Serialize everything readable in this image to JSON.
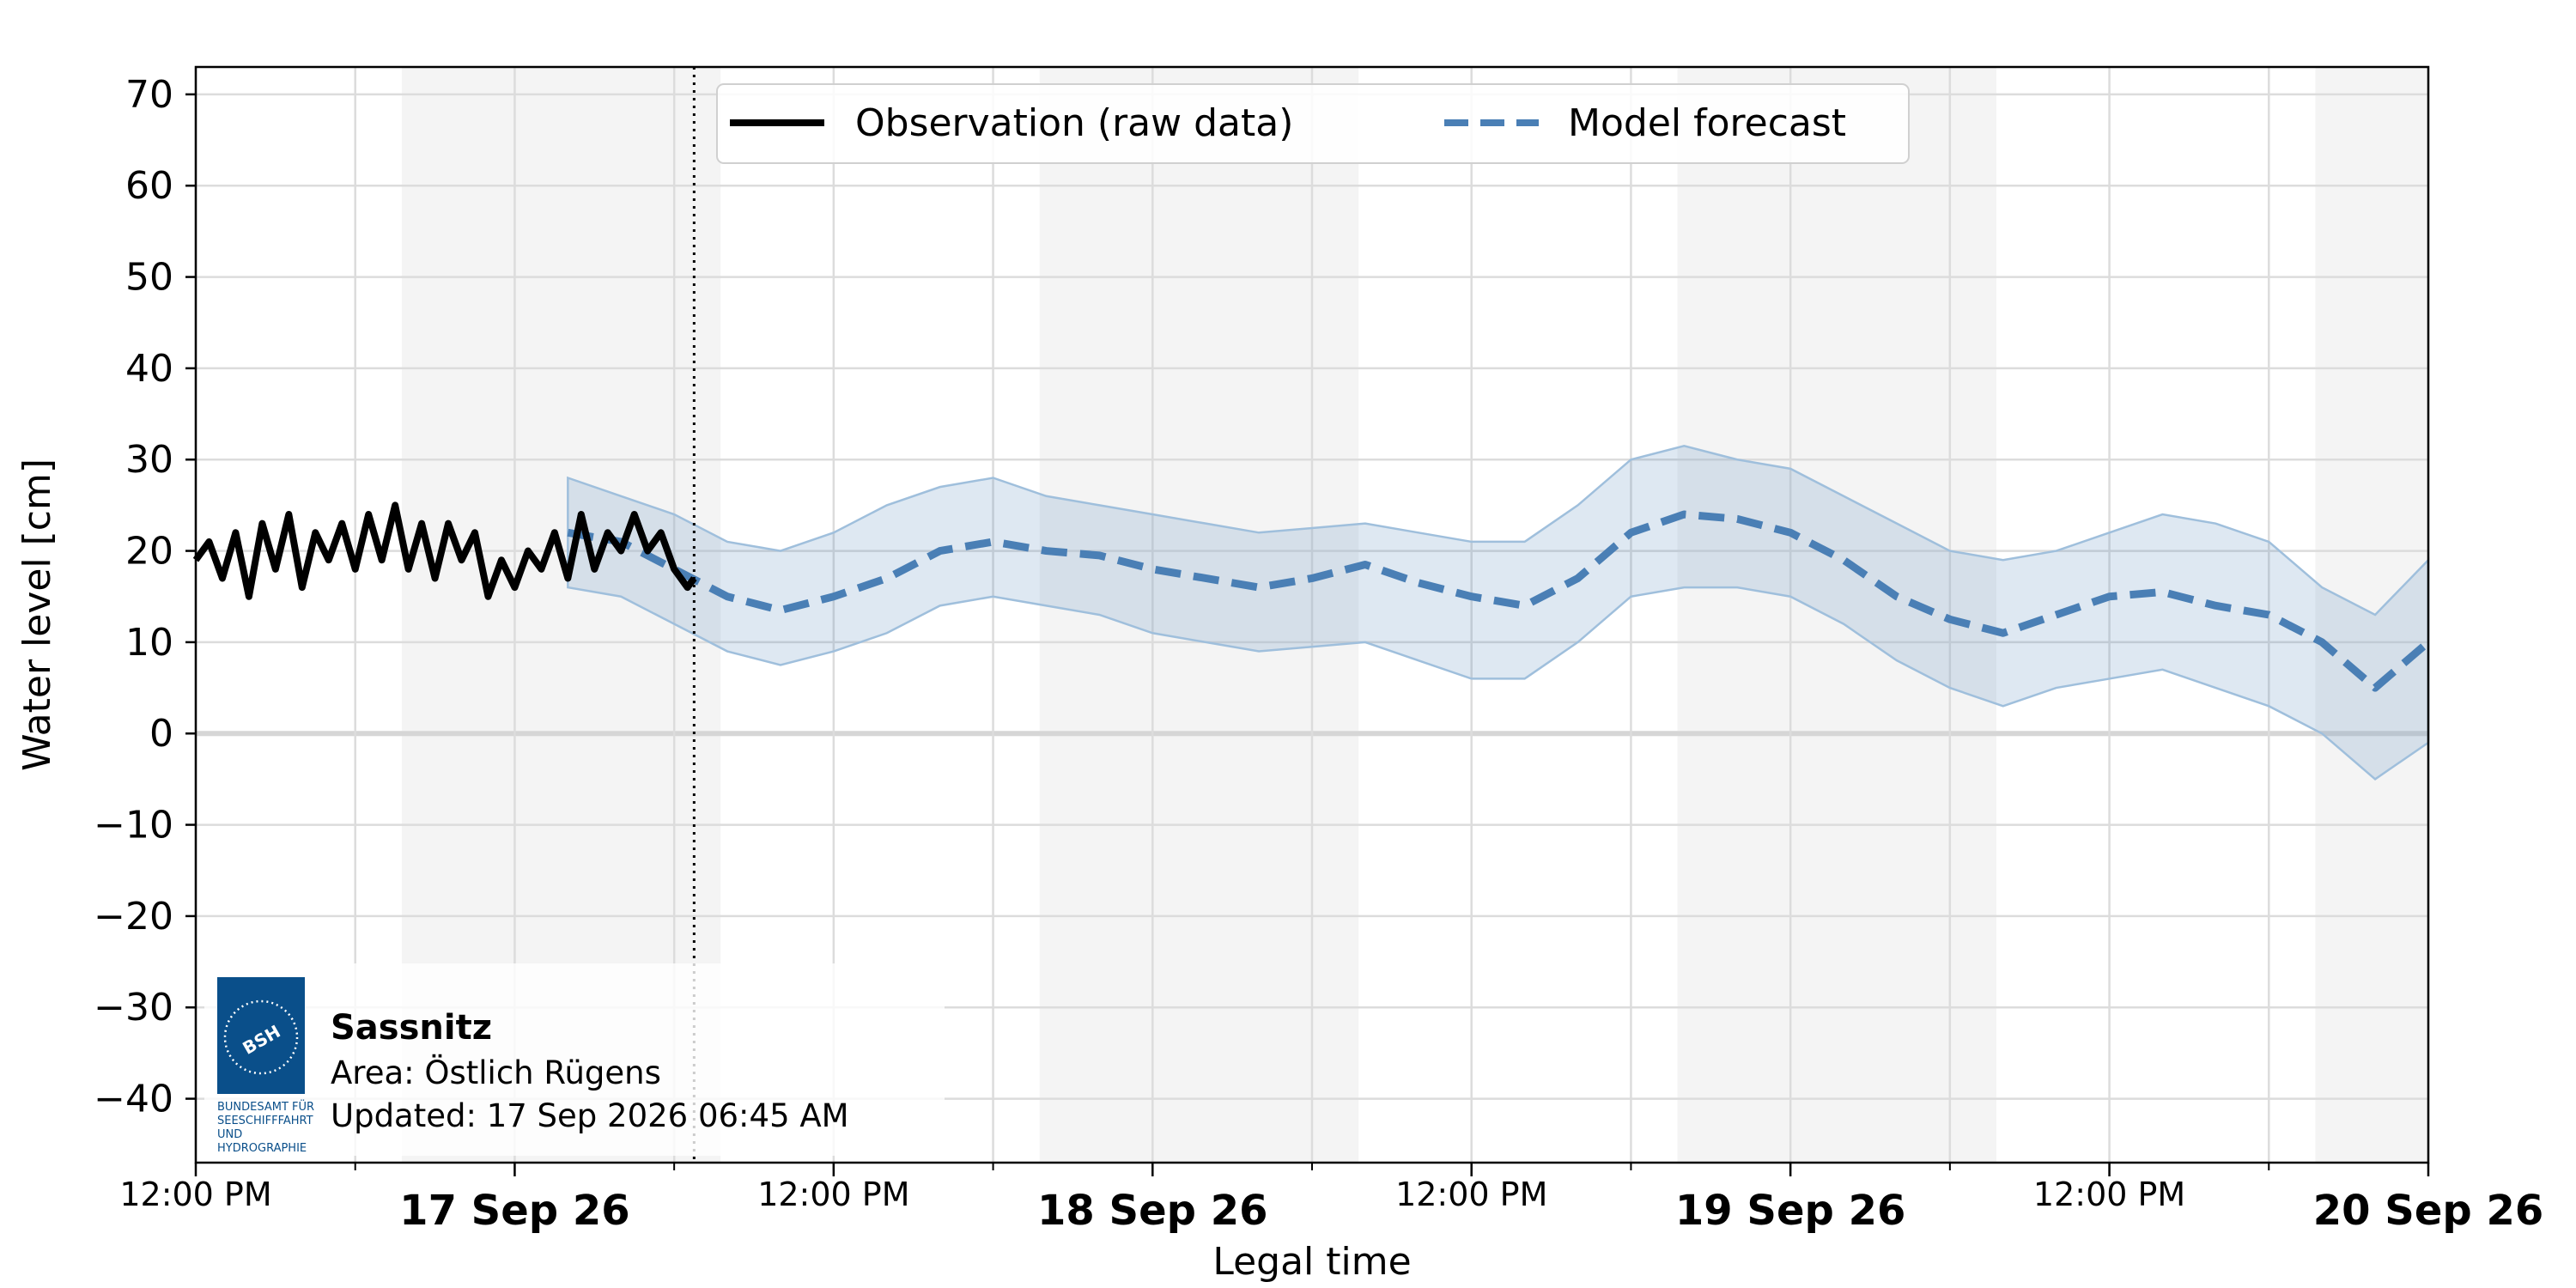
{
  "chart_data": {
    "type": "line",
    "xlabel": "Legal time",
    "ylabel": "Water level [cm]",
    "ylim": [
      -47,
      73
    ],
    "yticks": [
      70,
      60,
      50,
      40,
      30,
      20,
      10,
      0,
      -10,
      -20,
      -30,
      -40
    ],
    "ytick_labels": [
      "70",
      "60",
      "50",
      "40",
      "30",
      "20",
      "10",
      "0",
      "−10",
      "−20",
      "−30",
      "−40"
    ],
    "xlim": [
      "2026-09-16T12:00",
      "2026-09-20T00:00"
    ],
    "xticks": [
      {
        "t": "2026-09-16T12:00",
        "label": "12:00 PM",
        "major": false
      },
      {
        "t": "2026-09-17T00:00",
        "label": "17 Sep 26",
        "major": true
      },
      {
        "t": "2026-09-17T12:00",
        "label": "12:00 PM",
        "major": false
      },
      {
        "t": "2026-09-18T00:00",
        "label": "18 Sep 26",
        "major": true
      },
      {
        "t": "2026-09-18T12:00",
        "label": "12:00 PM",
        "major": false
      },
      {
        "t": "2026-09-19T00:00",
        "label": "19 Sep 26",
        "major": true
      },
      {
        "t": "2026-09-19T12:00",
        "label": "12:00 PM",
        "major": false
      },
      {
        "t": "2026-09-20T00:00",
        "label": "20 Sep 26",
        "major": true
      }
    ],
    "night_bands": [
      [
        "2026-09-16T19:45",
        "2026-09-17T07:45"
      ],
      [
        "2026-09-17T19:45",
        "2026-09-18T07:45"
      ],
      [
        "2026-09-18T19:45",
        "2026-09-19T07:45"
      ],
      [
        "2026-09-19T19:45",
        "2026-09-20T00:00"
      ]
    ],
    "now_marker": "2026-09-17T06:45",
    "grid": true,
    "zero_line": true,
    "legend_position": "top-center",
    "legend": [
      {
        "label": "Observation (raw data)",
        "style": "solid",
        "color": "#000000"
      },
      {
        "label": "Model forecast",
        "style": "dashed",
        "color": "#4a7fb5"
      }
    ],
    "series": [
      {
        "name": "Observation (raw data)",
        "style": "solid",
        "color": "#000000",
        "points": [
          [
            "2026-09-16T12:00",
            19
          ],
          [
            "2026-09-16T12:30",
            21
          ],
          [
            "2026-09-16T13:00",
            17
          ],
          [
            "2026-09-16T13:30",
            22
          ],
          [
            "2026-09-16T14:00",
            15
          ],
          [
            "2026-09-16T14:30",
            23
          ],
          [
            "2026-09-16T15:00",
            18
          ],
          [
            "2026-09-16T15:30",
            24
          ],
          [
            "2026-09-16T16:00",
            16
          ],
          [
            "2026-09-16T16:30",
            22
          ],
          [
            "2026-09-16T17:00",
            19
          ],
          [
            "2026-09-16T17:30",
            23
          ],
          [
            "2026-09-16T18:00",
            18
          ],
          [
            "2026-09-16T18:30",
            24
          ],
          [
            "2026-09-16T19:00",
            19
          ],
          [
            "2026-09-16T19:30",
            25
          ],
          [
            "2026-09-16T20:00",
            18
          ],
          [
            "2026-09-16T20:30",
            23
          ],
          [
            "2026-09-16T21:00",
            17
          ],
          [
            "2026-09-16T21:30",
            23
          ],
          [
            "2026-09-16T22:00",
            19
          ],
          [
            "2026-09-16T22:30",
            22
          ],
          [
            "2026-09-16T23:00",
            15
          ],
          [
            "2026-09-16T23:30",
            19
          ],
          [
            "2026-09-17T00:00",
            16
          ],
          [
            "2026-09-17T00:30",
            20
          ],
          [
            "2026-09-17T01:00",
            18
          ],
          [
            "2026-09-17T01:30",
            22
          ],
          [
            "2026-09-17T02:00",
            17
          ],
          [
            "2026-09-17T02:30",
            24
          ],
          [
            "2026-09-17T03:00",
            18
          ],
          [
            "2026-09-17T03:30",
            22
          ],
          [
            "2026-09-17T04:00",
            20
          ],
          [
            "2026-09-17T04:30",
            24
          ],
          [
            "2026-09-17T05:00",
            20
          ],
          [
            "2026-09-17T05:30",
            22
          ],
          [
            "2026-09-17T06:00",
            18
          ],
          [
            "2026-09-17T06:30",
            16
          ],
          [
            "2026-09-17T06:45",
            17
          ]
        ]
      },
      {
        "name": "Model forecast",
        "style": "dashed",
        "color": "#4a7fb5",
        "points": [
          [
            "2026-09-17T02:00",
            22
          ],
          [
            "2026-09-17T04:00",
            21
          ],
          [
            "2026-09-17T06:00",
            18
          ],
          [
            "2026-09-17T08:00",
            15
          ],
          [
            "2026-09-17T10:00",
            13.5
          ],
          [
            "2026-09-17T12:00",
            15
          ],
          [
            "2026-09-17T14:00",
            17
          ],
          [
            "2026-09-17T16:00",
            20
          ],
          [
            "2026-09-17T18:00",
            21
          ],
          [
            "2026-09-17T20:00",
            20
          ],
          [
            "2026-09-17T22:00",
            19.5
          ],
          [
            "2026-09-18T00:00",
            18
          ],
          [
            "2026-09-18T02:00",
            17
          ],
          [
            "2026-09-18T04:00",
            16
          ],
          [
            "2026-09-18T06:00",
            17
          ],
          [
            "2026-09-18T08:00",
            18.5
          ],
          [
            "2026-09-18T10:00",
            16.5
          ],
          [
            "2026-09-18T12:00",
            15
          ],
          [
            "2026-09-18T14:00",
            14
          ],
          [
            "2026-09-18T16:00",
            17
          ],
          [
            "2026-09-18T18:00",
            22
          ],
          [
            "2026-09-18T20:00",
            24
          ],
          [
            "2026-09-18T22:00",
            23.5
          ],
          [
            "2026-09-19T00:00",
            22
          ],
          [
            "2026-09-19T02:00",
            19
          ],
          [
            "2026-09-19T04:00",
            15
          ],
          [
            "2026-09-19T06:00",
            12.5
          ],
          [
            "2026-09-19T08:00",
            11
          ],
          [
            "2026-09-19T10:00",
            13
          ],
          [
            "2026-09-19T12:00",
            15
          ],
          [
            "2026-09-19T14:00",
            15.5
          ],
          [
            "2026-09-19T16:00",
            14
          ],
          [
            "2026-09-19T18:00",
            13
          ],
          [
            "2026-09-19T20:00",
            10
          ],
          [
            "2026-09-19T22:00",
            5
          ],
          [
            "2026-09-20T00:00",
            10
          ]
        ],
        "band_upper": [
          28,
          26,
          24,
          21,
          20,
          22,
          25,
          27,
          28,
          26,
          25,
          24,
          23,
          22,
          22.5,
          23,
          22,
          21,
          21,
          25,
          30,
          31.5,
          30,
          29,
          26,
          23,
          20,
          19,
          20,
          22,
          24,
          23,
          21,
          16,
          13,
          19
        ],
        "band_lower": [
          16,
          15,
          12,
          9,
          7.5,
          9,
          11,
          14,
          15,
          14,
          13,
          11,
          10,
          9,
          9.5,
          10,
          8,
          6,
          6,
          10,
          15,
          16,
          16,
          15,
          12,
          8,
          5,
          3,
          5,
          6,
          7,
          5,
          3,
          0,
          -5,
          -1
        ]
      }
    ]
  },
  "info_box": {
    "station": "Sassnitz",
    "area": "Area: Östlich Rügens",
    "updated": "Updated: 17 Sep 2026 06:45 AM",
    "logo_text": "BSH",
    "logo_caption": [
      "BUNDESAMT FÜR",
      "SEESCHIFFFAHRT",
      "UND",
      "HYDROGRAPHIE"
    ],
    "logo_color": "#0a4f8a"
  }
}
